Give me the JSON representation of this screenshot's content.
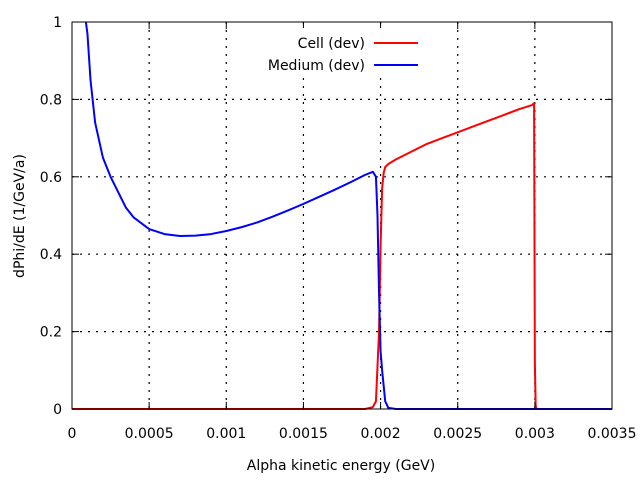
{
  "chart_data": {
    "type": "line",
    "xlabel": "Alpha kinetic energy (GeV)",
    "ylabel": "dPhi/dE (1/GeV/a)",
    "xlim": [
      0,
      0.0035
    ],
    "ylim": [
      0,
      1
    ],
    "x_ticks": [
      0,
      0.0005,
      0.001,
      0.0015,
      0.002,
      0.0025,
      0.003,
      0.0035
    ],
    "x_tick_labels": [
      "0",
      "0.0005",
      "0.001",
      "0.0015",
      "0.002",
      "0.0025",
      "0.003",
      "0.0035"
    ],
    "y_ticks": [
      0,
      0.2,
      0.4,
      0.6,
      0.8,
      1
    ],
    "y_tick_labels": [
      "0",
      "0.2",
      "0.4",
      "0.6",
      "0.8",
      "1"
    ],
    "grid": true,
    "legend_position": "top-center",
    "series": [
      {
        "name": "Cell (dev)",
        "color": "#ff0000",
        "x": [
          0,
          0.0019,
          0.00195,
          0.00197,
          0.00199,
          0.002,
          0.00201,
          0.00202,
          0.00203,
          0.00205,
          0.0021,
          0.0022,
          0.0023,
          0.0024,
          0.0025,
          0.0026,
          0.0027,
          0.0028,
          0.0029,
          0.00298,
          0.002995,
          0.003,
          0.003005,
          0.00301,
          0.0035
        ],
        "y": [
          0,
          0,
          0.005,
          0.02,
          0.2,
          0.42,
          0.57,
          0.61,
          0.625,
          0.633,
          0.645,
          0.665,
          0.685,
          0.7,
          0.715,
          0.73,
          0.745,
          0.76,
          0.775,
          0.785,
          0.79,
          0.12,
          0.01,
          0,
          0
        ]
      },
      {
        "name": "Medium (dev)",
        "color": "#0000ff",
        "x": [
          9e-05,
          0.0001,
          0.00012,
          0.00015,
          0.0002,
          0.00025,
          0.0003,
          0.00035,
          0.0004,
          0.0005,
          0.0006,
          0.0007,
          0.0008,
          0.0009,
          0.001,
          0.0011,
          0.0012,
          0.0013,
          0.0014,
          0.0015,
          0.0016,
          0.0017,
          0.0018,
          0.0019,
          0.00195,
          0.00197,
          0.00198,
          0.00199,
          0.002,
          0.00201,
          0.00202,
          0.00203,
          0.00205,
          0.0021,
          0.0035
        ],
        "y": [
          1,
          0.97,
          0.85,
          0.74,
          0.65,
          0.6,
          0.56,
          0.52,
          0.495,
          0.465,
          0.452,
          0.447,
          0.448,
          0.452,
          0.46,
          0.47,
          0.482,
          0.497,
          0.513,
          0.53,
          0.548,
          0.566,
          0.585,
          0.605,
          0.613,
          0.6,
          0.5,
          0.3,
          0.15,
          0.1,
          0.06,
          0.02,
          0.003,
          0,
          0
        ]
      }
    ]
  }
}
